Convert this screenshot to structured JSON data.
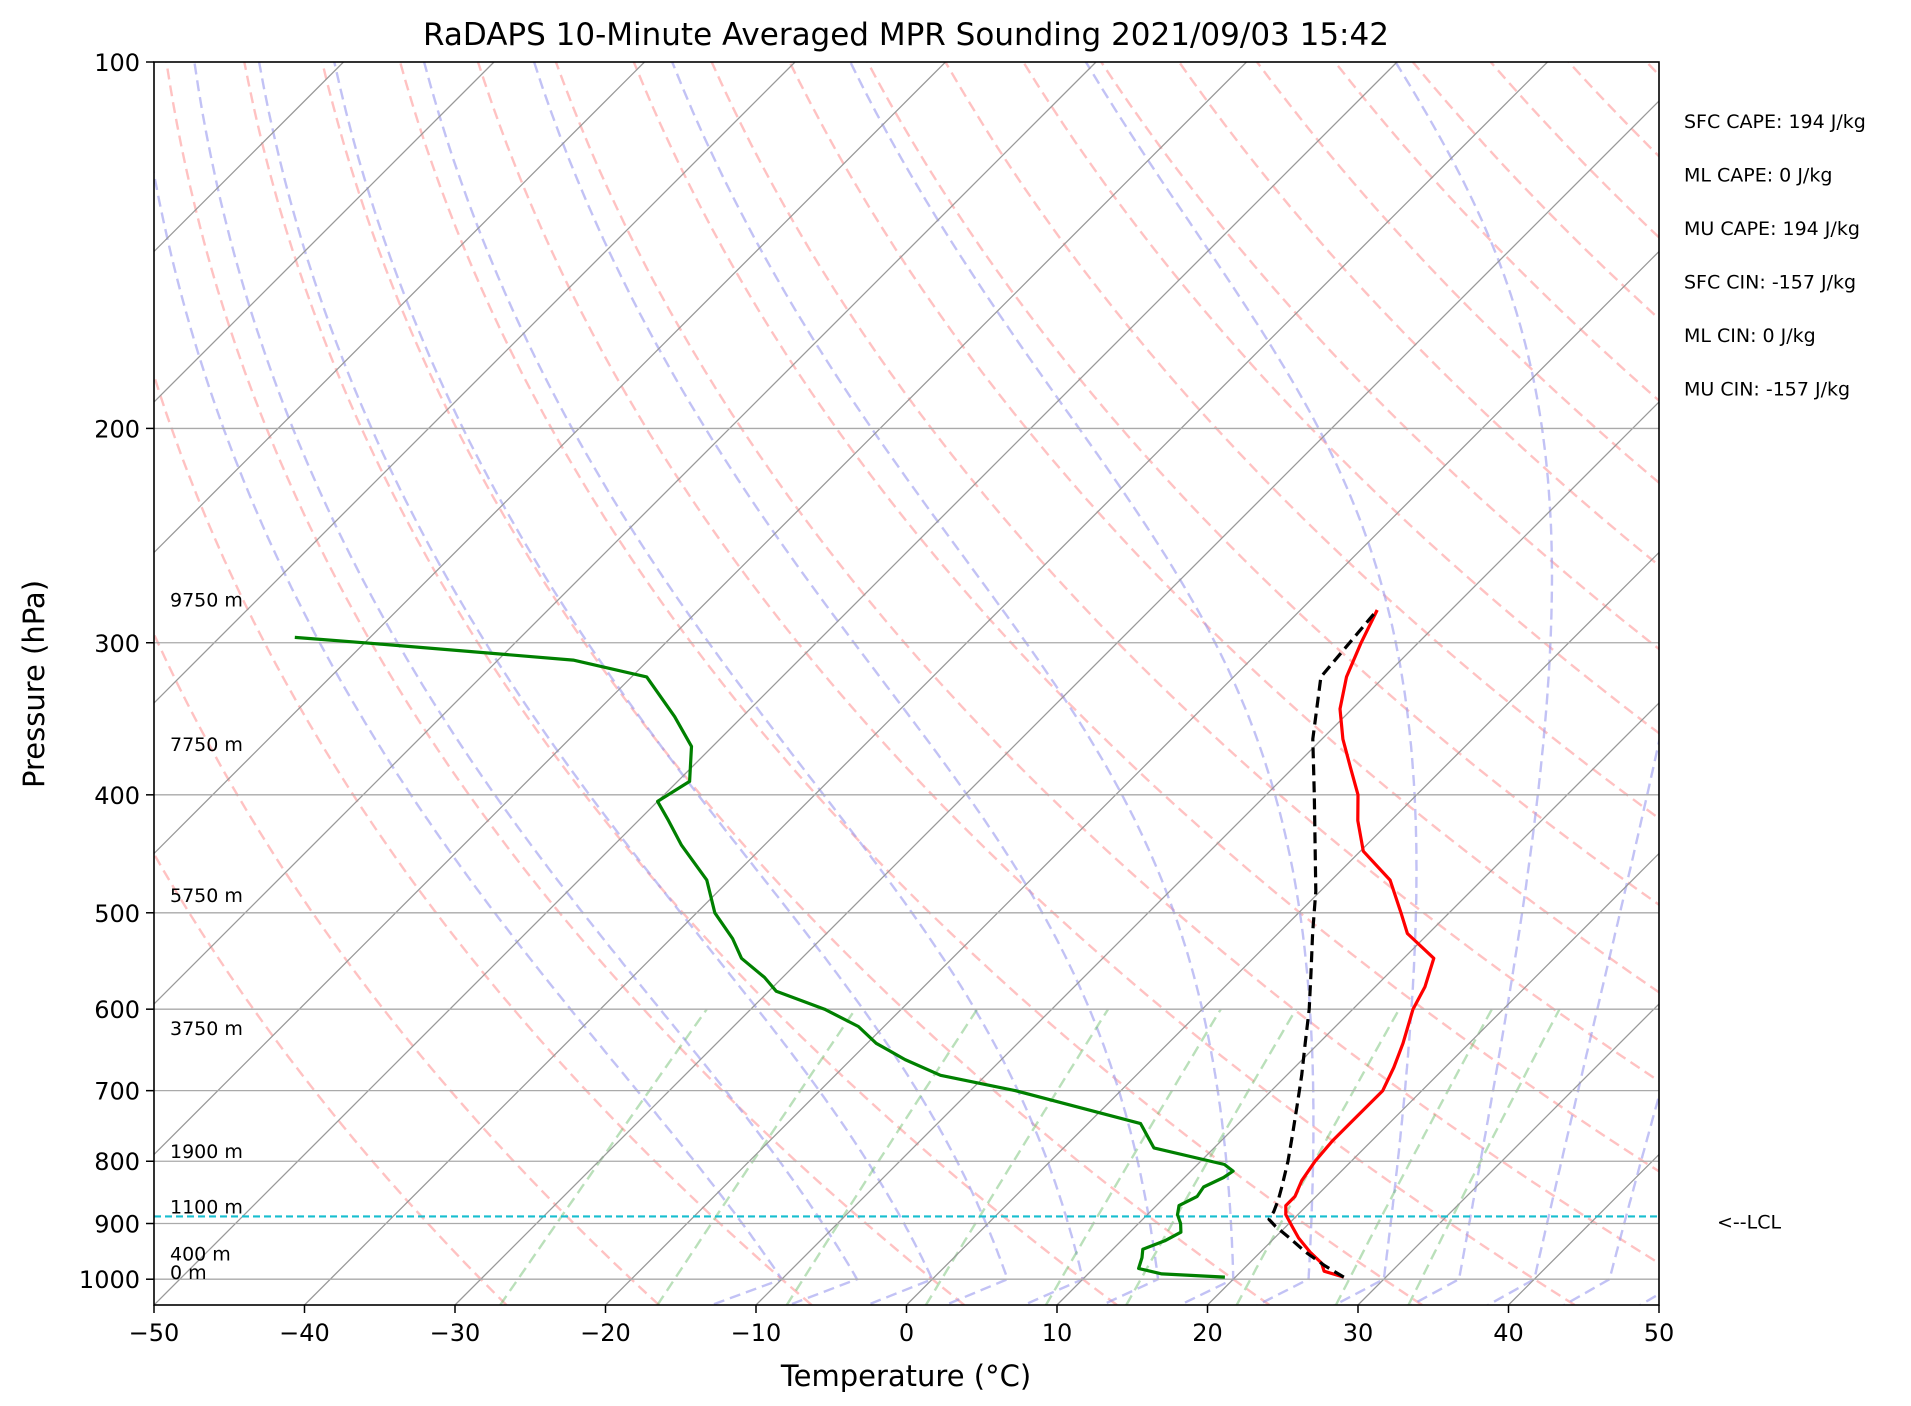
{
  "chart_data": {
    "type": "line",
    "title": "RaDAPS 10-Minute Averaged MPR Sounding 2021/09/03 15:42",
    "xlabel": "Temperature (°C)",
    "ylabel": "Pressure (hPa)",
    "xlim": [
      -50,
      50
    ],
    "ylim": [
      1050,
      100
    ],
    "y_scale": "log",
    "skew_degrees": 45,
    "x_ticks": [
      "−50",
      "−40",
      "−30",
      "−20",
      "−10",
      "0",
      "10",
      "20",
      "30",
      "40",
      "50"
    ],
    "y_ticks": [
      "100",
      "200",
      "300",
      "400",
      "500",
      "600",
      "700",
      "800",
      "900",
      "1000"
    ],
    "grid": true,
    "series": [
      {
        "color": "#ff0000",
        "pressure": [
          996,
          985,
          970,
          950,
          925,
          905,
          885,
          870,
          855,
          830,
          800,
          770,
          740,
          700,
          670,
          640,
          600,
          575,
          545,
          520,
          500,
          470,
          445,
          420,
          400,
          380,
          360,
          340,
          320,
          300,
          282
        ],
        "values": [
          27.2,
          25.5,
          24.8,
          23.3,
          21.6,
          20.4,
          19.2,
          18.6,
          18.6,
          18.0,
          17.6,
          17.4,
          17.4,
          17.4,
          16.6,
          15.6,
          14.0,
          13.3,
          12.0,
          8.6,
          6.8,
          3.9,
          0.2,
          -2.2,
          -3.9,
          -6.2,
          -8.6,
          -10.8,
          -12.5,
          -13.8,
          -14.9
        ]
      },
      {
        "color": "#008000",
        "pressure": [
          996,
          990,
          980,
          960,
          945,
          930,
          915,
          900,
          885,
          870,
          855,
          840,
          825,
          815,
          805,
          780,
          745,
          700,
          680,
          660,
          640,
          620,
          600,
          580,
          565,
          545,
          525,
          500,
          470,
          440,
          420,
          405,
          390,
          365,
          345,
          320,
          310,
          300,
          297
        ],
        "values": [
          19.3,
          14.9,
          13.0,
          12.5,
          12.0,
          12.9,
          13.4,
          12.8,
          12.0,
          11.5,
          12.1,
          11.9,
          12.6,
          12.8,
          11.8,
          6.0,
          3.5,
          -7.0,
          -13.0,
          -16.4,
          -19.4,
          -21.7,
          -25.1,
          -29.5,
          -31.2,
          -34.0,
          -35.9,
          -38.8,
          -41.5,
          -45.5,
          -48.0,
          -50.0,
          -49.2,
          -51.4,
          -54.5,
          -59.0,
          -65.0,
          -80.0,
          -85.0
        ]
      },
      {
        "color": "#000000",
        "dashed": true,
        "pressure": [
          996,
          975,
          950,
          925,
          905,
          893,
          880,
          860,
          840,
          800,
          760,
          720,
          680,
          640,
          600,
          560,
          520,
          480,
          440,
          400,
          360,
          320,
          282
        ],
        "values": [
          27.2,
          25.2,
          23.0,
          21.0,
          19.3,
          18.4,
          18.2,
          17.7,
          17.1,
          15.8,
          14.3,
          12.7,
          11.0,
          9.1,
          7.1,
          4.8,
          2.3,
          -0.3,
          -3.4,
          -6.8,
          -10.6,
          -14.2,
          -14.9
        ]
      }
    ],
    "lcl_pressure": 888,
    "lcl_label": "<--LCL",
    "height_labels": [
      {
        "text": "9750 m",
        "pressure": 280
      },
      {
        "text": "7750 m",
        "pressure": 368
      },
      {
        "text": "5750 m",
        "pressure": 490
      },
      {
        "text": "3750 m",
        "pressure": 630
      },
      {
        "text": "1900 m",
        "pressure": 795
      },
      {
        "text": "1100 m",
        "pressure": 883
      },
      {
        "text": "400 m",
        "pressure": 965
      },
      {
        "text": "0 m",
        "pressure": 1000
      }
    ],
    "stats": [
      "SFC CAPE: 194 J/kg",
      "ML CAPE: 0 J/kg",
      "MU CAPE: 194 J/kg",
      "SFC CIN: -157 J/kg",
      "ML CIN: 0 J/kg",
      "MU CIN: -157 J/kg"
    ]
  }
}
